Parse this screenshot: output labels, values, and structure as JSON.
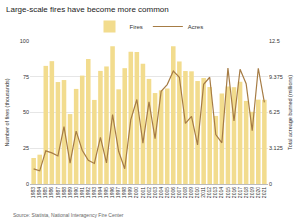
{
  "chart_data": {
    "type": "bar",
    "title": "Large-scale fires have become more common",
    "source": "Source: Statista, National Interagency Fire Center",
    "y_label": "Number of fires (thousands)",
    "y2_label": "Total acreage burned (millions)",
    "categories": [
      "1983",
      "1984",
      "1985",
      "1986",
      "1987",
      "1988",
      "1989",
      "1990",
      "1991",
      "1992",
      "1993",
      "1994",
      "1995",
      "1996",
      "1997",
      "1998",
      "1999",
      "2000",
      "2001",
      "2002",
      "2003",
      "2004",
      "2005",
      "2006",
      "2007",
      "2008",
      "2009",
      "2010",
      "2011",
      "2012",
      "2013",
      "2014",
      "2015",
      "2016",
      "2017",
      "2018",
      "2019",
      "2020",
      "2021"
    ],
    "series": [
      {
        "name": "Fires",
        "type": "bar",
        "color": "#f2dc8e",
        "values": [
          18.2,
          20.5,
          82.6,
          85.9,
          71.3,
          72.7,
          48.9,
          66.5,
          75.8,
          87.4,
          58.8,
          79.1,
          82.2,
          96.4,
          66.2,
          81.0,
          92.5,
          92.3,
          84.1,
          73.5,
          63.6,
          65.5,
          66.8,
          96.4,
          85.7,
          79.0,
          78.8,
          72.0,
          74.1,
          67.8,
          47.6,
          63.3,
          68.2,
          67.7,
          71.5,
          58.1,
          50.5,
          59.0,
          58.9
        ]
      },
      {
        "name": "Acres",
        "type": "line",
        "color": "#a67c45",
        "axis": "y2",
        "values": [
          1.32,
          1.15,
          2.9,
          2.72,
          2.45,
          5.01,
          1.83,
          4.62,
          2.95,
          2.07,
          1.8,
          4.07,
          1.84,
          6.07,
          2.86,
          1.33,
          5.63,
          7.39,
          3.57,
          7.18,
          3.96,
          8.1,
          8.69,
          9.87,
          9.33,
          5.29,
          5.92,
          3.42,
          8.71,
          9.33,
          4.32,
          3.6,
          10.13,
          5.51,
          10.03,
          8.77,
          4.66,
          10.12,
          7.13
        ]
      }
    ],
    "ylim": [
      0,
      100
    ],
    "yticks": [
      0,
      25,
      50,
      75,
      100
    ],
    "y2lim": [
      0,
      12.5
    ],
    "y2ticks": [
      0,
      3.125,
      6.25,
      9.375,
      12.5
    ],
    "grid": true,
    "legend": "top"
  }
}
